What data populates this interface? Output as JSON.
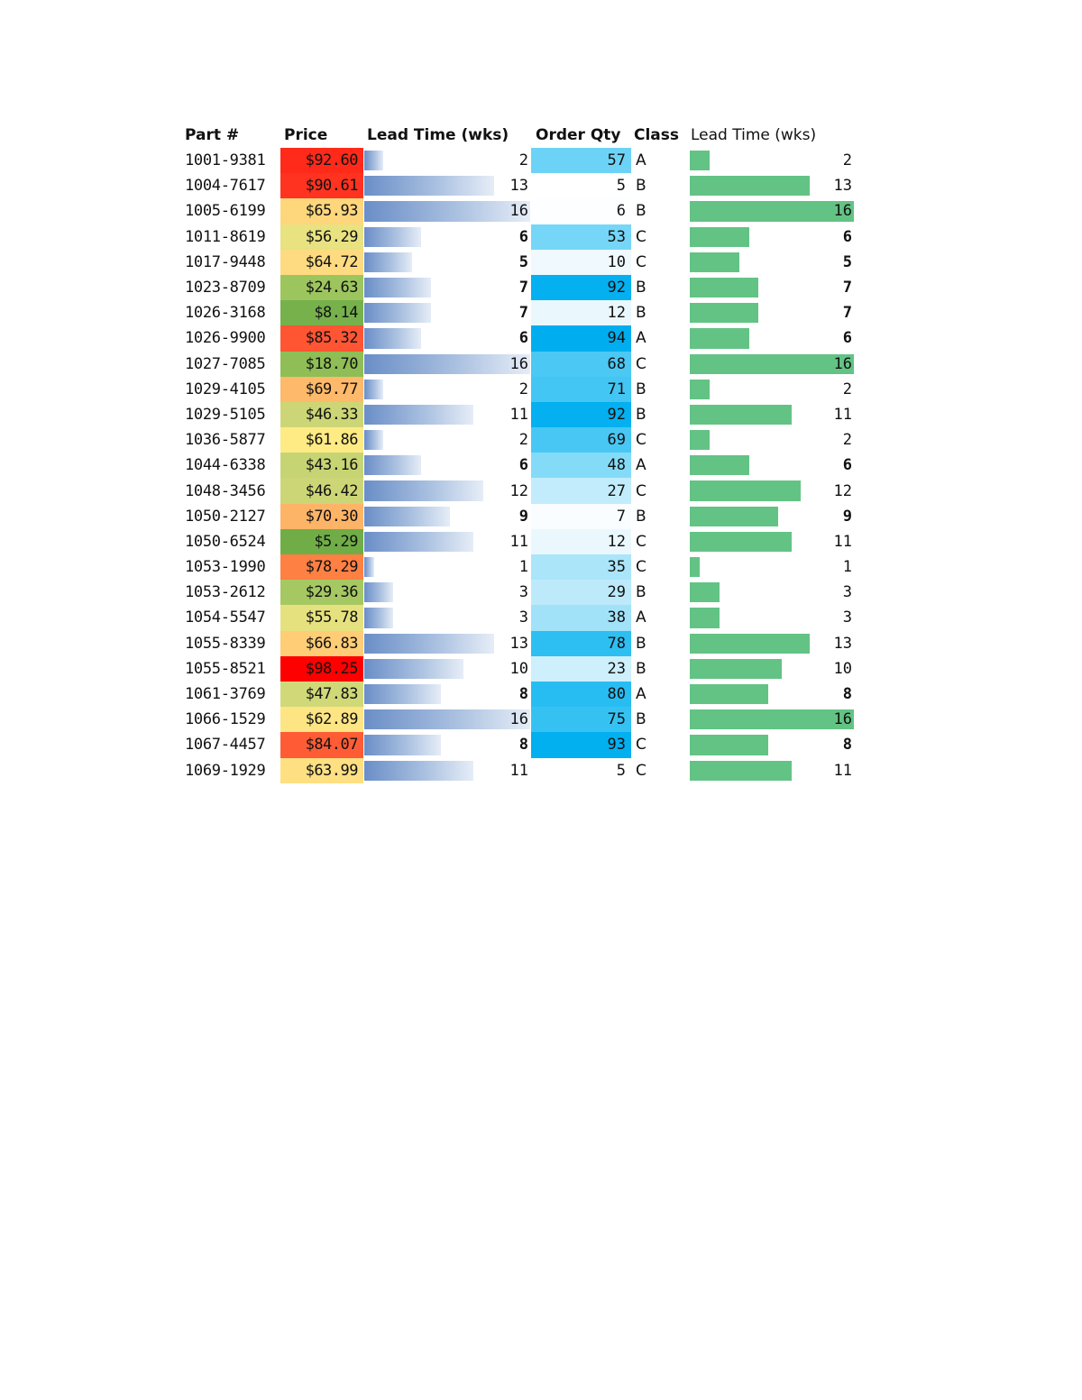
{
  "headers": {
    "part": "Part #",
    "price": "Price",
    "lead_time": "Lead Time (wks)",
    "order_qty": "Order Qty",
    "class": "Class",
    "lead_time_2": "Lead Time (wks)"
  },
  "max_lead_time": 16,
  "rows": [
    {
      "part": "1001-9381",
      "price": "$92.60",
      "price_color": "#ff2a1a",
      "lead": 2,
      "qty": "57",
      "qty_color": "#6dd3f6",
      "class": "A"
    },
    {
      "part": "1004-7617",
      "price": "$90.61",
      "price_color": "#ff3320",
      "lead": 13,
      "qty": "5",
      "qty_color": "#ffffff",
      "class": "B"
    },
    {
      "part": "1005-6199",
      "price": "$65.93",
      "price_color": "#fed67c",
      "lead": 16,
      "qty": "6",
      "qty_color": "#fcfeff",
      "class": "B"
    },
    {
      "part": "1011-8619",
      "price": "$56.29",
      "price_color": "#e8e281",
      "lead": 6,
      "qty": "53",
      "qty_color": "#75d6f7",
      "class": "C"
    },
    {
      "part": "1017-9448",
      "price": "$64.72",
      "price_color": "#fedb80",
      "lead": 5,
      "qty": "10",
      "qty_color": "#eff9fe",
      "class": "C"
    },
    {
      "part": "1023-8709",
      "price": "$24.63",
      "price_color": "#9dc55e",
      "lead": 7,
      "qty": "92",
      "qty_color": "#04b0f0",
      "class": "B"
    },
    {
      "part": "1026-3168",
      "price": "$8.14",
      "price_color": "#76b14c",
      "lead": 7,
      "qty": "12",
      "qty_color": "#eaf8fe",
      "class": "B"
    },
    {
      "part": "1026-9900",
      "price": "$85.32",
      "price_color": "#ff5533",
      "lead": 6,
      "qty": "94",
      "qty_color": "#00aeef",
      "class": "A"
    },
    {
      "part": "1027-7085",
      "price": "$18.70",
      "price_color": "#8ebe55",
      "lead": 16,
      "qty": "68",
      "qty_color": "#4bc8f4",
      "class": "C"
    },
    {
      "part": "1029-4105",
      "price": "$69.77",
      "price_color": "#feb96a",
      "lead": 2,
      "qty": "71",
      "qty_color": "#43c6f4",
      "class": "B"
    },
    {
      "part": "1029-5105",
      "price": "$46.33",
      "price_color": "#cdd676",
      "lead": 11,
      "qty": "92",
      "qty_color": "#04b0f0",
      "class": "B"
    },
    {
      "part": "1036-5877",
      "price": "$61.86",
      "price_color": "#feeb84",
      "lead": 2,
      "qty": "69",
      "qty_color": "#48c7f4",
      "class": "C"
    },
    {
      "part": "1044-6338",
      "price": "$43.16",
      "price_color": "#c7d473",
      "lead": 6,
      "qty": "48",
      "qty_color": "#84dbf8",
      "class": "A"
    },
    {
      "part": "1048-3456",
      "price": "$46.42",
      "price_color": "#cdd676",
      "lead": 12,
      "qty": "27",
      "qty_color": "#c2ecfb",
      "class": "C"
    },
    {
      "part": "1050-2127",
      "price": "$70.30",
      "price_color": "#feb467",
      "lead": 9,
      "qty": "7",
      "qty_color": "#f9fdff",
      "class": "B"
    },
    {
      "part": "1050-6524",
      "price": "$5.29",
      "price_color": "#70ad47",
      "lead": 11,
      "qty": "12",
      "qty_color": "#eaf8fe",
      "class": "C"
    },
    {
      "part": "1053-1990",
      "price": "$78.29",
      "price_color": "#ff8043",
      "lead": 1,
      "qty": "35",
      "qty_color": "#aae5fa",
      "class": "C"
    },
    {
      "part": "1053-2612",
      "price": "$29.36",
      "price_color": "#a6c862",
      "lead": 3,
      "qty": "29",
      "qty_color": "#bdeafb",
      "class": "B"
    },
    {
      "part": "1054-5547",
      "price": "$55.78",
      "price_color": "#e6e17f",
      "lead": 3,
      "qty": "38",
      "qty_color": "#a1e2f9",
      "class": "A"
    },
    {
      "part": "1055-8339",
      "price": "$66.83",
      "price_color": "#fecd76",
      "lead": 13,
      "qty": "78",
      "qty_color": "#2dbff2",
      "class": "B"
    },
    {
      "part": "1055-8521",
      "price": "$98.25",
      "price_color": "#ff0000",
      "lead": 10,
      "qty": "23",
      "qty_color": "#cdf0fc",
      "class": "B"
    },
    {
      "part": "1061-3769",
      "price": "$47.83",
      "price_color": "#d0d878",
      "lead": 8,
      "qty": "80",
      "qty_color": "#28bdf2",
      "class": "A"
    },
    {
      "part": "1066-1529",
      "price": "$62.89",
      "price_color": "#fee583",
      "lead": 16,
      "qty": "75",
      "qty_color": "#35c2f3",
      "class": "B"
    },
    {
      "part": "1067-4457",
      "price": "$84.07",
      "price_color": "#ff5c35",
      "lead": 8,
      "qty": "93",
      "qty_color": "#02afef",
      "class": "C"
    },
    {
      "part": "1069-1929",
      "price": "$63.99",
      "price_color": "#fee082",
      "lead": 11,
      "qty": "5",
      "qty_color": "#ffffff",
      "class": "C"
    }
  ]
}
